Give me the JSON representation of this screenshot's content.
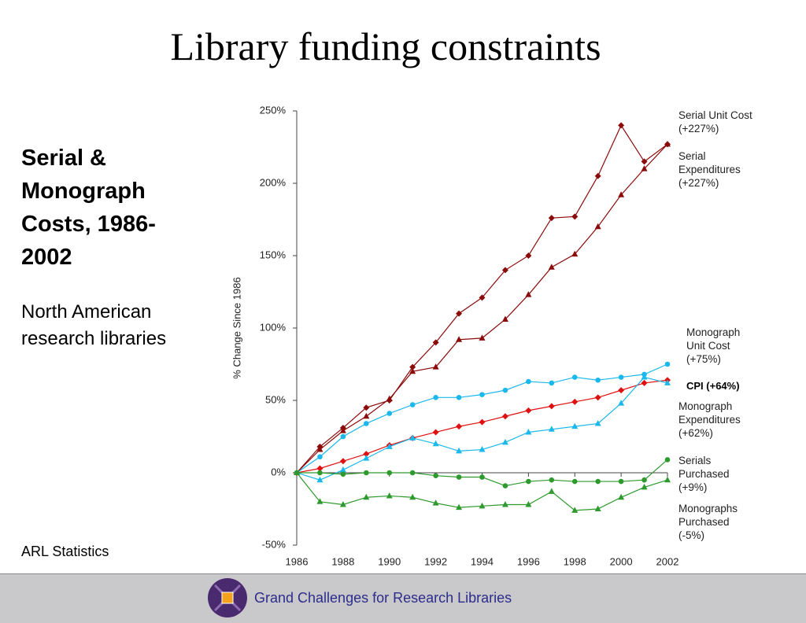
{
  "title": "Library funding constraints",
  "heading": "Serial & Monograph Costs, 1986-2002",
  "subheading": "North American research libraries",
  "source": "ARL Statistics",
  "footer": "Grand Challenges for Research Libraries",
  "chart_data": {
    "type": "line",
    "y_label": "% Change Since 1986",
    "x": [
      1986,
      1987,
      1988,
      1989,
      1990,
      1991,
      1992,
      1993,
      1994,
      1995,
      1996,
      1997,
      1998,
      1999,
      2000,
      2001,
      2002
    ],
    "xlim": [
      1986,
      2002
    ],
    "xticks": [
      1986,
      1988,
      1990,
      1992,
      1994,
      1996,
      1998,
      2000,
      2002
    ],
    "ylim": [
      -50,
      250
    ],
    "yticks": [
      {
        "value": -50,
        "label": "-50%"
      },
      {
        "value": 0,
        "label": "0%"
      },
      {
        "value": 50,
        "label": "50%"
      },
      {
        "value": 100,
        "label": "100%"
      },
      {
        "value": 150,
        "label": "150%"
      },
      {
        "value": 200,
        "label": "200%"
      },
      {
        "value": 250,
        "label": "250%"
      }
    ],
    "series": [
      {
        "name": "Serial Unit Cost (+227%)",
        "color": "#8b0a0a",
        "marker": "diamond",
        "values": [
          0,
          18,
          31,
          45,
          50,
          73,
          90,
          110,
          121,
          140,
          150,
          176,
          177,
          205,
          240,
          215,
          227
        ]
      },
      {
        "name": "Serial Expenditures (+227%)",
        "color": "#8b0a0a",
        "marker": "triangle",
        "values": [
          0,
          16,
          29,
          39,
          51,
          70,
          73,
          92,
          93,
          106,
          123,
          142,
          151,
          170,
          192,
          210,
          227
        ]
      },
      {
        "name": "Monograph Unit Cost (+75%)",
        "color": "#1ab8ec",
        "marker": "circle",
        "values": [
          0,
          11,
          25,
          34,
          41,
          47,
          52,
          52,
          54,
          57,
          63,
          62,
          66,
          64,
          66,
          68,
          75
        ]
      },
      {
        "name": "CPI (+64%)",
        "color": "#e01010",
        "marker": "diamond",
        "values": [
          0,
          3,
          8,
          13,
          19,
          24,
          28,
          32,
          35,
          39,
          43,
          46,
          49,
          52,
          57,
          62,
          64
        ]
      },
      {
        "name": "Monograph Expenditures (+62%)",
        "color": "#1ab8ec",
        "marker": "triangle",
        "values": [
          0,
          -5,
          2,
          10,
          18,
          24,
          20,
          15,
          16,
          21,
          28,
          30,
          32,
          34,
          48,
          66,
          62
        ]
      },
      {
        "name": "Serials Purchased (+9%)",
        "color": "#2e9a2e",
        "marker": "circle",
        "values": [
          0,
          0,
          -1,
          0,
          0,
          0,
          -2,
          -3,
          -3,
          -9,
          -6,
          -5,
          -6,
          -6,
          -6,
          -5,
          9
        ]
      },
      {
        "name": "Monographs Purchased (-5%)",
        "color": "#2e9a2e",
        "marker": "triangle",
        "values": [
          0,
          -20,
          -22,
          -17,
          -16,
          -17,
          -21,
          -24,
          -23,
          -22,
          -22,
          -13,
          -26,
          -25,
          -17,
          -10,
          -5
        ]
      }
    ]
  }
}
